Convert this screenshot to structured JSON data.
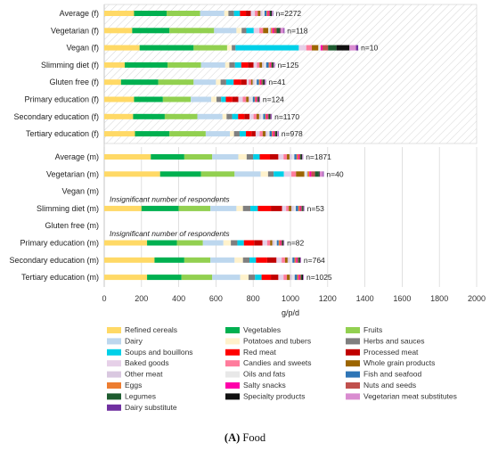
{
  "chart_data": {
    "type": "bar",
    "orientation": "horizontal",
    "stacked": true,
    "xlabel": "g/p/d",
    "xlim": [
      0,
      2000
    ],
    "xticks": [
      0,
      200,
      400,
      600,
      800,
      1000,
      1200,
      1400,
      1600,
      1800,
      2000
    ],
    "grid": true,
    "legend_position": "bottom",
    "categories": [
      "Refined cereals",
      "Vegetables",
      "Fruits",
      "Dairy",
      "Potatoes and tubers",
      "Herbs and sauces",
      "Soups and bouillons",
      "Red meat",
      "Processed meat",
      "Baked goods",
      "Candies and sweets",
      "Whole grain products",
      "Other meat",
      "Oils and fats",
      "Fish and seafood",
      "Eggs",
      "Salty snacks",
      "Nuts and seeds",
      "Legumes",
      "Specialty products",
      "Vegetarian meat substitutes",
      "Dairy substitute"
    ],
    "category_colors": [
      "#ffd966",
      "#00b050",
      "#92d050",
      "#bdd7ee",
      "#fff2cc",
      "#7f7f7f",
      "#00d0e8",
      "#ff0000",
      "#c00000",
      "#e6d0e8",
      "#ff7c9c",
      "#9c6500",
      "#d9c8e0",
      "#e8e8e8",
      "#2e75b6",
      "#ed7d31",
      "#ff00aa",
      "#c0504d",
      "#1e5c30",
      "#111111",
      "#d98cd0",
      "#7030a0"
    ],
    "groups": [
      {
        "name": "female",
        "rows": [
          {
            "label": "Average (f)",
            "n": "n=2272",
            "values": [
              160,
              175,
              180,
              130,
              22,
              30,
              32,
              32,
              26,
              22,
              16,
              14,
              10,
              12,
              11,
              6,
              6,
              6,
              5,
              5,
              4,
              3
            ]
          },
          {
            "label": "Vegetarian (f)",
            "n": "n=118",
            "values": [
              150,
              200,
              240,
              120,
              28,
              25,
              40,
              0,
              0,
              30,
              20,
              28,
              0,
              12,
              2,
              8,
              8,
              15,
              15,
              5,
              18,
              4
            ]
          },
          {
            "label": "Vegan (f)",
            "n": "n=10",
            "values": [
              190,
              290,
              180,
              0,
              25,
              20,
              340,
              0,
              0,
              40,
              30,
              35,
              0,
              12,
              0,
              0,
              10,
              30,
              45,
              70,
              35,
              12
            ]
          },
          {
            "label": "Slimming diet (f)",
            "n": "n=125",
            "values": [
              110,
              230,
              180,
              130,
              22,
              30,
              34,
              36,
              30,
              18,
              14,
              14,
              10,
              12,
              13,
              6,
              5,
              6,
              5,
              4,
              4,
              3
            ]
          },
          {
            "label": "Gluten free (f)",
            "n": "n=41",
            "values": [
              90,
              200,
              190,
              120,
              25,
              30,
              40,
              40,
              30,
              12,
              12,
              8,
              10,
              12,
              12,
              6,
              5,
              8,
              5,
              6,
              4,
              3
            ]
          },
          {
            "label": "Primary education (f)",
            "n": "n=124",
            "values": [
              160,
              155,
              150,
              110,
              28,
              25,
              25,
              35,
              32,
              24,
              18,
              14,
              10,
              12,
              10,
              6,
              5,
              5,
              4,
              4,
              3,
              2
            ]
          },
          {
            "label": "Secondary education (f)",
            "n": "n=1170",
            "values": [
              155,
              170,
              175,
              135,
              22,
              30,
              32,
              33,
              28,
              22,
              16,
              14,
              10,
              12,
              11,
              6,
              6,
              6,
              5,
              5,
              4,
              3
            ]
          },
          {
            "label": "Tertiary education (f)",
            "n": "n=978",
            "values": [
              165,
              185,
              195,
              130,
              22,
              30,
              34,
              30,
              22,
              22,
              16,
              15,
              10,
              12,
              12,
              6,
              6,
              7,
              5,
              5,
              5,
              3
            ]
          }
        ]
      },
      {
        "name": "male",
        "rows": [
          {
            "label": "Average (m)",
            "n": "n=1871",
            "values": [
              250,
              180,
              150,
              140,
              45,
              35,
              35,
              55,
              45,
              28,
              18,
              14,
              12,
              14,
              12,
              8,
              6,
              6,
              5,
              5,
              3,
              2
            ]
          },
          {
            "label": "Vegetarian (m)",
            "n": "n=40",
            "values": [
              300,
              220,
              180,
              140,
              40,
              30,
              55,
              0,
              0,
              40,
              25,
              45,
              0,
              15,
              2,
              10,
              10,
              20,
              20,
              5,
              18,
              4
            ]
          },
          {
            "label": "Vegan (m)",
            "note": "Insignificant number of respondents"
          },
          {
            "label": "Slimming diet (m)",
            "n": "n=53",
            "values": [
              200,
              200,
              170,
              140,
              35,
              40,
              40,
              70,
              60,
              22,
              14,
              14,
              12,
              12,
              13,
              8,
              5,
              6,
              5,
              4,
              3,
              2
            ]
          },
          {
            "label": "Gluten free (m)",
            "note": "Insignificant number of respondents"
          },
          {
            "label": "Primary education (m)",
            "n": "n=82",
            "values": [
              230,
              160,
              140,
              110,
              40,
              35,
              35,
              55,
              45,
              25,
              16,
              12,
              12,
              12,
              10,
              8,
              5,
              5,
              4,
              4,
              2,
              2
            ]
          },
          {
            "label": "Secondary education (m)",
            "n": "n=764",
            "values": [
              270,
              160,
              140,
              130,
              45,
              35,
              35,
              60,
              50,
              28,
              18,
              14,
              12,
              14,
              11,
              8,
              6,
              6,
              5,
              5,
              3,
              2
            ]
          },
          {
            "label": "Tertiary education (m)",
            "n": "n=1025",
            "values": [
              230,
              185,
              165,
              150,
              45,
              35,
              35,
              50,
              40,
              28,
              18,
              16,
              12,
              14,
              13,
              8,
              6,
              7,
              5,
              5,
              3,
              2
            ]
          }
        ]
      }
    ]
  },
  "caption": {
    "letter": "(A)",
    "text": "Food"
  }
}
